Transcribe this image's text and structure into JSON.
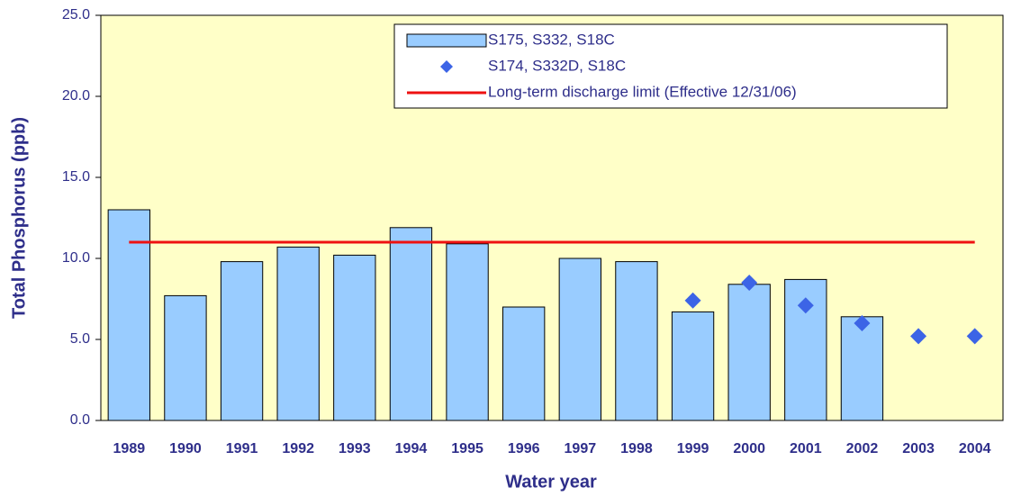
{
  "chart_data": {
    "type": "bar",
    "x_label": "Water year",
    "y_label": "Total Phosphorus (ppb)",
    "categories": [
      "1989",
      "1990",
      "1991",
      "1992",
      "1993",
      "1994",
      "1995",
      "1996",
      "1997",
      "1998",
      "1999",
      "2000",
      "2001",
      "2002",
      "2003",
      "2004"
    ],
    "series": [
      {
        "name": "S175, S332, S18C",
        "type": "bar",
        "color": "#99ccff",
        "values": [
          13.0,
          7.7,
          9.8,
          10.7,
          10.2,
          11.9,
          10.9,
          7.0,
          10.0,
          9.8,
          6.7,
          8.4,
          8.7,
          6.4,
          null,
          null
        ]
      },
      {
        "name": "S174, S332D, S18C",
        "type": "scatter",
        "color": "#3c64e6",
        "values": [
          null,
          null,
          null,
          null,
          null,
          null,
          null,
          null,
          null,
          null,
          7.4,
          8.5,
          7.1,
          6.0,
          5.2,
          5.2
        ]
      },
      {
        "name": "Long-term discharge limit (Effective 12/31/06)",
        "type": "line",
        "color": "#ee1111",
        "values": [
          11.0,
          11.0,
          11.0,
          11.0,
          11.0,
          11.0,
          11.0,
          11.0,
          11.0,
          11.0,
          11.0,
          11.0,
          11.0,
          11.0,
          11.0,
          11.0
        ]
      }
    ],
    "ylim": [
      0,
      25
    ],
    "yticks": [
      {
        "value": 0,
        "label": "0.0"
      },
      {
        "value": 5,
        "label": "5.0"
      },
      {
        "value": 10,
        "label": "10.0"
      },
      {
        "value": 15,
        "label": "15.0"
      },
      {
        "value": 20,
        "label": "20.0"
      },
      {
        "value": 25,
        "label": "25.0"
      }
    ],
    "plot_background": "#ffffc8",
    "legend": "top-right"
  }
}
